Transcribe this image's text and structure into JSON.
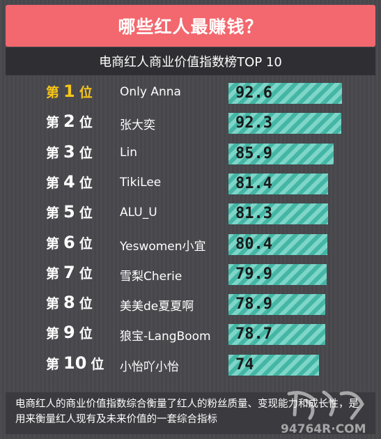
{
  "title": "哪些红人最赚钱？",
  "subtitle": "电商红人商业价值指数榜TOP 10",
  "rank_prefix": "第",
  "rank_suffix": "位",
  "footnote": "电商红人的商业价值指数综合衡量了红人的粉丝质量、变现能力和成长性，是用来衡量红人现有及未来价值的一套综合指标",
  "watermark": "94764R·COM",
  "colors": {
    "title_bg": "#f2686e",
    "subtitle_bg": "#2f2f33",
    "first_rank": "#f6c51a",
    "bar_light": "#7ed6c8",
    "bar_dark": "#45b6a6"
  },
  "chart_data": {
    "type": "bar",
    "orientation": "horizontal",
    "categories": [
      "Only Anna",
      "张大奕",
      "Lin",
      "TikiLee",
      "ALU_U",
      "Yeswomen小宜",
      "雪梨Cherie",
      "美美de夏夏啊",
      "狼宝-LangBoom",
      "小怡吖小怡"
    ],
    "ranks": [
      "1",
      "2",
      "3",
      "4",
      "5",
      "6",
      "7",
      "8",
      "9",
      "10"
    ],
    "values": [
      92.6,
      92.3,
      85.9,
      81.4,
      81.3,
      80.4,
      79.9,
      78.9,
      78.7,
      74
    ],
    "value_labels": [
      "92.6",
      "92.3",
      "85.9",
      "81.4",
      "81.3",
      "80.4",
      "79.9",
      "78.9",
      "78.7",
      "74"
    ]
  }
}
